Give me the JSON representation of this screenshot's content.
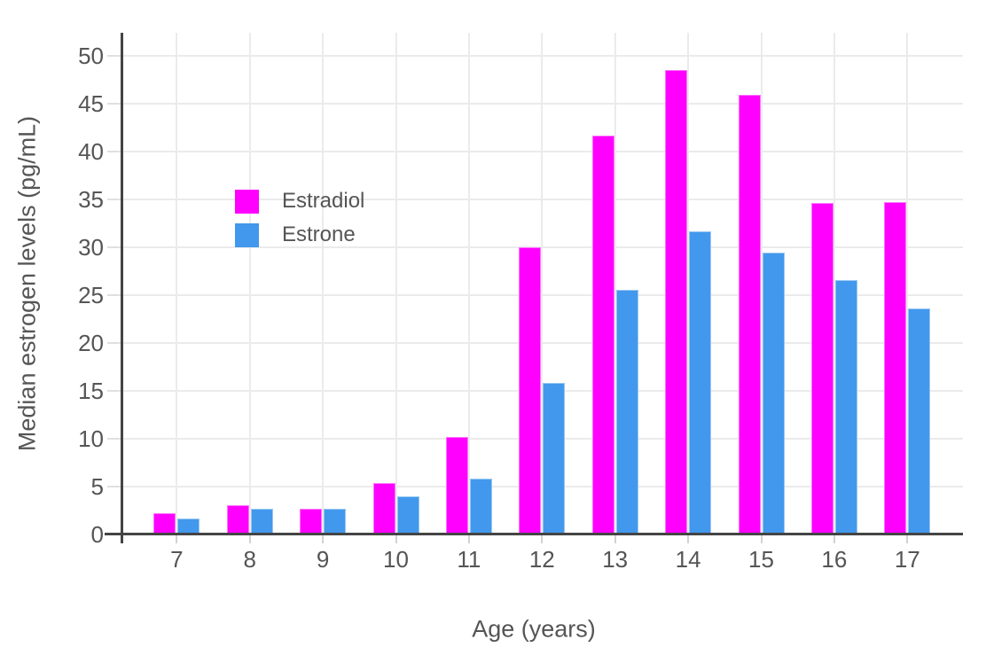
{
  "chart_data": {
    "type": "bar",
    "title": "",
    "xlabel": "Age (years)",
    "ylabel": "Median estrogen levels (pg/mL)",
    "categories": [
      7,
      8,
      9,
      10,
      11,
      12,
      13,
      14,
      15,
      16,
      17
    ],
    "series": [
      {
        "name": "Estradiol",
        "color": "#FF00FF",
        "values": [
          2.2,
          3.1,
          2.7,
          5.4,
          10.2,
          30.0,
          41.6,
          48.5,
          45.9,
          34.6,
          34.7
        ]
      },
      {
        "name": "Estrone",
        "color": "#4298EC",
        "values": [
          1.7,
          2.7,
          2.65,
          4.0,
          5.8,
          15.8,
          25.5,
          31.6,
          29.4,
          26.6,
          23.6
        ]
      }
    ],
    "yticks": [
      0,
      5,
      10,
      15,
      20,
      25,
      30,
      35,
      40,
      45,
      50
    ],
    "ylim": [
      0,
      52.4
    ],
    "grid": true,
    "legend_position": "inside-top-left",
    "colors": {
      "gridline": "#ebebeb",
      "axis_line": "#444444",
      "text": "#555555",
      "background": "#ffffff"
    }
  }
}
